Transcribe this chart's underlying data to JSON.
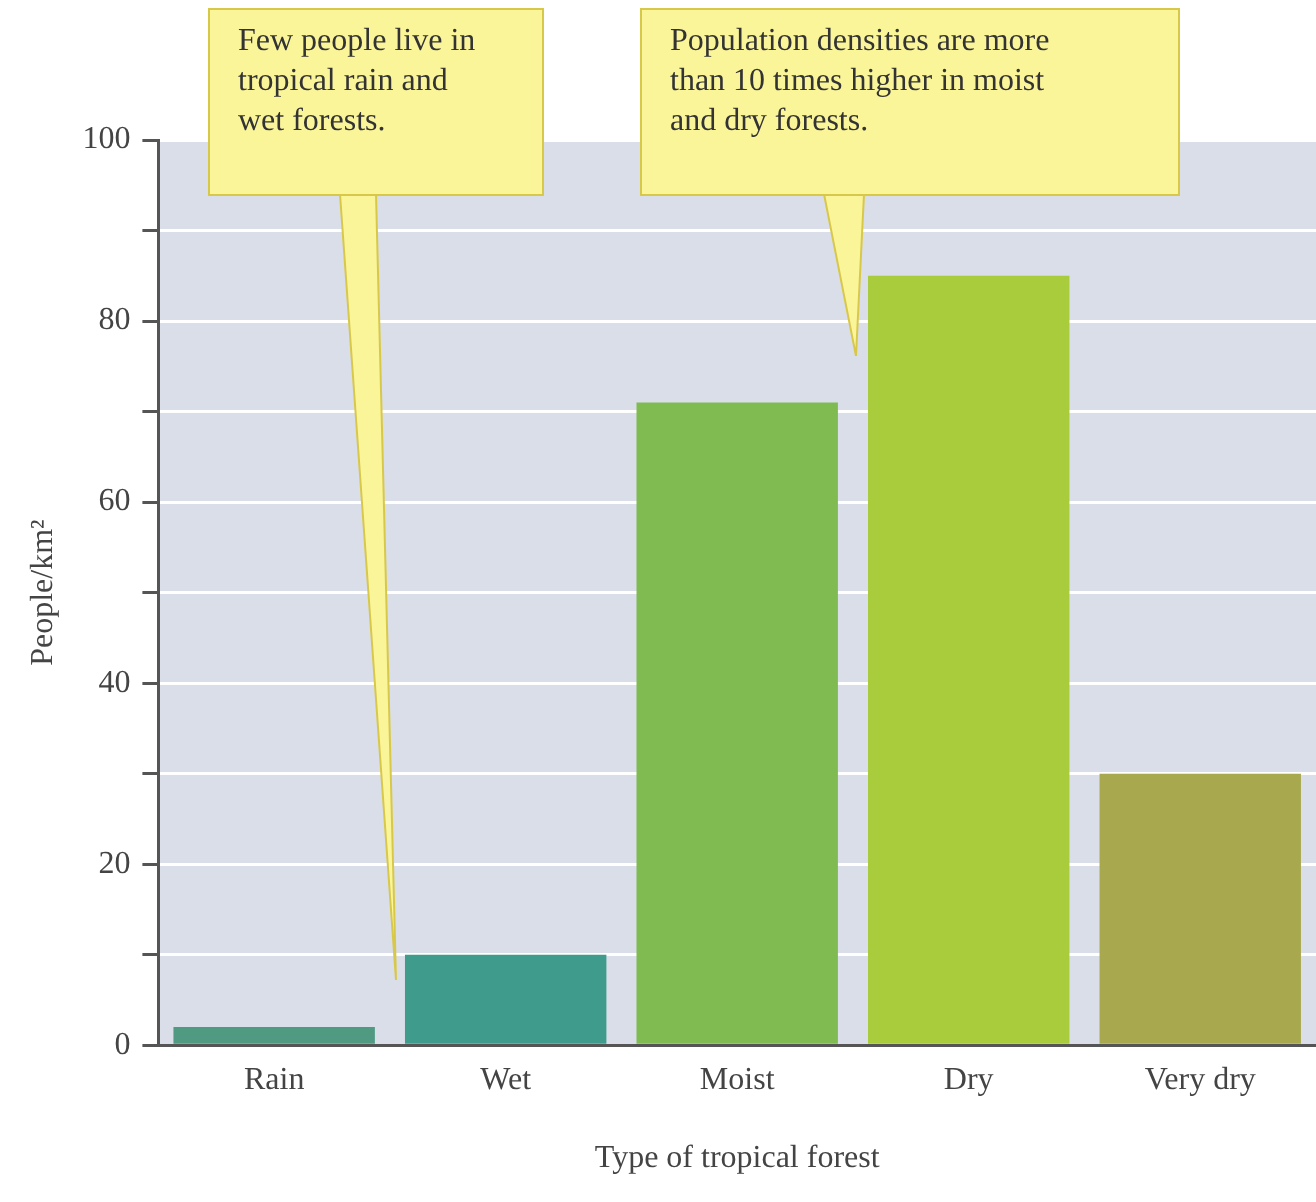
{
  "chart_data": {
    "type": "bar",
    "xlabel": "Type of tropical forest",
    "ylabel": "People/km²",
    "categories": [
      "Rain",
      "Wet",
      "Moist",
      "Dry",
      "Very dry"
    ],
    "values": [
      2,
      10,
      71,
      85,
      30
    ],
    "colors": [
      "#4f9a80",
      "#3f9c8c",
      "#80bb52",
      "#a8cc3c",
      "#a8a84e"
    ],
    "ylim": [
      0,
      100
    ],
    "yticks": [
      0,
      {
        "value": 10,
        "label": null
      },
      20,
      {
        "value": 30,
        "label": null
      },
      40,
      {
        "value": 50,
        "label": null
      },
      60,
      {
        "value": 70,
        "label": null
      },
      80,
      {
        "value": 90,
        "label": null
      },
      100
    ],
    "grid": "y",
    "legend": false,
    "annotations": [
      "Few people live in tropical rain and wet forests.",
      "Population densities are more than 10 times higher in moist and dry forests."
    ]
  }
}
